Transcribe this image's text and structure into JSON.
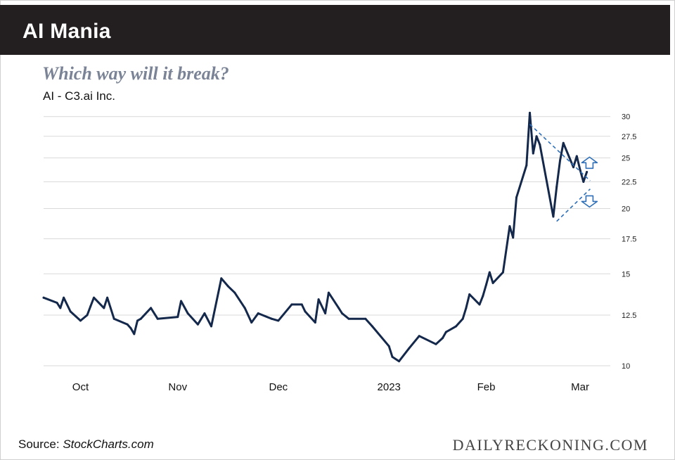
{
  "header": {
    "title": "AI Mania"
  },
  "subtitle": "Which way will it break?",
  "series_label": "AI - C3.ai Inc.",
  "footer": {
    "source_prefix": "Source: ",
    "source_site": "StockCharts.com",
    "brand": "DAILYRECKONING.COM"
  },
  "colors": {
    "header_bg": "#231f20",
    "line": "#14284b",
    "trendline": "#2e6fb7",
    "grid": "#d9d9d9",
    "subtitle": "#7b8496"
  },
  "chart_data": {
    "type": "line",
    "title": "Which way will it break?",
    "subtitle": "AI - C3.ai Inc.",
    "x_range": [
      "2022-09-22",
      "2023-03-10"
    ],
    "x_ticks": [
      {
        "label": "Oct",
        "date": "2022-10-03"
      },
      {
        "label": "Nov",
        "date": "2022-11-01"
      },
      {
        "label": "Dec",
        "date": "2022-12-01"
      },
      {
        "label": "2023",
        "date": "2023-01-03"
      },
      {
        "label": "Feb",
        "date": "2023-02-01"
      },
      {
        "label": "Mar",
        "date": "2023-03-01"
      }
    ],
    "y_scale": "log",
    "ylim": [
      10,
      31.5
    ],
    "y_ticks": [
      10,
      12.5,
      15,
      17.5,
      20,
      22.5,
      25,
      27.5,
      30
    ],
    "y_tick_labels": [
      "10",
      "12.5",
      "15",
      "17.5",
      "20",
      "22.5",
      "25",
      "27.5",
      "30"
    ],
    "y_axis_side": "right",
    "grid": true,
    "series": [
      {
        "dates": [
          "2022-09-22",
          "2022-09-26",
          "2022-09-27",
          "2022-09-28",
          "2022-09-30",
          "2022-10-03",
          "2022-10-05",
          "2022-10-06",
          "2022-10-07",
          "2022-10-10",
          "2022-10-11",
          "2022-10-13",
          "2022-10-17",
          "2022-10-18",
          "2022-10-19",
          "2022-10-20",
          "2022-10-21",
          "2022-10-24",
          "2022-10-26",
          "2022-11-01",
          "2022-11-02",
          "2022-11-04",
          "2022-11-07",
          "2022-11-09",
          "2022-11-11",
          "2022-11-14",
          "2022-11-16",
          "2022-11-18",
          "2022-11-21",
          "2022-11-23",
          "2022-11-25",
          "2022-11-29",
          "2022-12-01",
          "2022-12-05",
          "2022-12-08",
          "2022-12-09",
          "2022-12-12",
          "2022-12-13",
          "2022-12-15",
          "2022-12-16",
          "2022-12-19",
          "2022-12-20",
          "2022-12-22",
          "2022-12-27",
          "2022-12-29",
          "2023-01-03",
          "2023-01-04",
          "2023-01-06",
          "2023-01-09",
          "2023-01-12",
          "2023-01-17",
          "2023-01-19",
          "2023-01-20",
          "2023-01-23",
          "2023-01-25",
          "2023-01-26",
          "2023-01-27",
          "2023-01-30",
          "2023-01-31",
          "2023-02-01",
          "2023-02-02",
          "2023-02-03",
          "2023-02-06",
          "2023-02-08",
          "2023-02-09",
          "2023-02-10",
          "2023-02-13",
          "2023-02-14",
          "2023-02-15",
          "2023-02-16",
          "2023-02-17",
          "2023-02-21",
          "2023-02-22",
          "2023-02-23",
          "2023-02-24",
          "2023-02-27",
          "2023-02-28",
          "2023-03-01",
          "2023-03-02",
          "2023-03-03"
        ],
        "values": [
          13.5,
          13.2,
          12.9,
          13.5,
          12.7,
          12.2,
          12.5,
          13.0,
          13.5,
          12.9,
          13.5,
          12.3,
          12.0,
          11.8,
          11.5,
          12.2,
          12.3,
          12.9,
          12.3,
          12.4,
          13.3,
          12.6,
          12.0,
          12.6,
          11.9,
          14.7,
          14.2,
          13.8,
          12.9,
          12.1,
          12.6,
          12.3,
          12.2,
          13.1,
          13.1,
          12.7,
          12.1,
          13.4,
          12.6,
          13.8,
          12.9,
          12.6,
          12.3,
          12.3,
          11.9,
          10.9,
          10.4,
          10.2,
          10.8,
          11.4,
          11.0,
          11.3,
          11.6,
          11.9,
          12.3,
          12.9,
          13.7,
          13.1,
          13.6,
          14.3,
          15.1,
          14.4,
          15.1,
          18.5,
          17.6,
          21.0,
          24.2,
          30.5,
          25.5,
          27.5,
          26.5,
          19.3,
          22.0,
          24.7,
          26.7,
          24.0,
          25.2,
          23.7,
          22.5,
          23.5
        ]
      }
    ],
    "annotations": [
      {
        "type": "trendline",
        "style": "dashed",
        "from": {
          "date": "2023-02-14",
          "value": 29.0
        },
        "to": {
          "date": "2023-03-04",
          "value": 22.6
        }
      },
      {
        "type": "trendline",
        "style": "dashed",
        "from": {
          "date": "2023-02-22",
          "value": 18.9
        },
        "to": {
          "date": "2023-03-04",
          "value": 21.8
        }
      },
      {
        "type": "arrow",
        "direction": "up",
        "at": {
          "date": "2023-03-04",
          "value": 24.4
        }
      },
      {
        "type": "arrow",
        "direction": "down",
        "at": {
          "date": "2023-03-04",
          "value": 20.7
        }
      }
    ]
  }
}
